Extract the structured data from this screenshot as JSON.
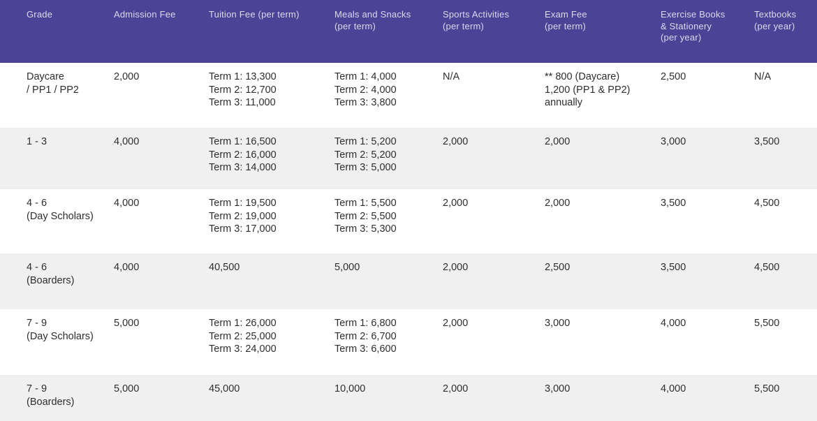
{
  "theme": {
    "header_bg": "#4b4395",
    "header_text": "#ddd9ee",
    "body_text": "#2e2e2e",
    "row_alt_bg": "#f0f0f0",
    "row_bg": "#ffffff"
  },
  "table": {
    "headers": [
      {
        "lines": [
          "Grade",
          "",
          ""
        ]
      },
      {
        "lines": [
          "Admission Fee",
          "",
          ""
        ]
      },
      {
        "lines": [
          "Tuition Fee (per term)",
          "",
          ""
        ]
      },
      {
        "lines": [
          "Meals and Snacks",
          "(per term)",
          ""
        ]
      },
      {
        "lines": [
          "Sports Activities",
          "(per term)",
          ""
        ]
      },
      {
        "lines": [
          "Exam Fee",
          "(per term)",
          ""
        ]
      },
      {
        "lines": [
          "Exercise Books",
          "& Stationery",
          "(per year)"
        ]
      },
      {
        "lines": [
          "Textbooks",
          "(per year)",
          ""
        ]
      }
    ],
    "rows": [
      {
        "cells": [
          {
            "lines": [
              "Daycare",
              "/ PP1 / PP2",
              ""
            ]
          },
          {
            "lines": [
              "2,000",
              "",
              ""
            ]
          },
          {
            "lines": [
              "Term 1: 13,300",
              "Term 2: 12,700",
              "Term 3: 11,000"
            ]
          },
          {
            "lines": [
              "Term 1: 4,000",
              "Term 2: 4,000",
              "Term 3: 3,800"
            ]
          },
          {
            "lines": [
              "N/A",
              "",
              ""
            ]
          },
          {
            "lines": [
              "** 800 (Daycare)",
              "1,200 (PP1 & PP2)",
              "annually"
            ]
          },
          {
            "lines": [
              "2,500",
              "",
              ""
            ]
          },
          {
            "lines": [
              "N/A",
              "",
              ""
            ]
          }
        ]
      },
      {
        "cells": [
          {
            "lines": [
              "1 - 3",
              "",
              ""
            ]
          },
          {
            "lines": [
              "4,000",
              "",
              ""
            ]
          },
          {
            "lines": [
              "Term 1: 16,500",
              "Term 2: 16,000",
              "Term 3: 14,000"
            ]
          },
          {
            "lines": [
              "Term 1: 5,200",
              "Term 2: 5,200",
              "Term 3: 5,000"
            ]
          },
          {
            "lines": [
              "2,000",
              "",
              ""
            ]
          },
          {
            "lines": [
              "2,000",
              "",
              ""
            ]
          },
          {
            "lines": [
              "3,000",
              "",
              ""
            ]
          },
          {
            "lines": [
              "3,500",
              "",
              ""
            ]
          }
        ]
      },
      {
        "cells": [
          {
            "lines": [
              "4 - 6",
              "(Day Scholars)",
              ""
            ]
          },
          {
            "lines": [
              "4,000",
              "",
              ""
            ]
          },
          {
            "lines": [
              "Term 1: 19,500",
              "Term 2: 19,000",
              "Term 3: 17,000"
            ]
          },
          {
            "lines": [
              "Term 1: 5,500",
              "Term 2: 5,500",
              "Term 3: 5,300"
            ]
          },
          {
            "lines": [
              "2,000",
              "",
              ""
            ]
          },
          {
            "lines": [
              "2,000",
              "",
              ""
            ]
          },
          {
            "lines": [
              "3,500",
              "",
              ""
            ]
          },
          {
            "lines": [
              "4,500",
              "",
              ""
            ]
          }
        ]
      },
      {
        "cells": [
          {
            "lines": [
              "4 - 6",
              "(Boarders)",
              ""
            ]
          },
          {
            "lines": [
              "4,000",
              "",
              ""
            ]
          },
          {
            "lines": [
              "40,500",
              "",
              ""
            ]
          },
          {
            "lines": [
              "5,000",
              "",
              ""
            ]
          },
          {
            "lines": [
              "2,000",
              "",
              ""
            ]
          },
          {
            "lines": [
              "2,500",
              "",
              ""
            ]
          },
          {
            "lines": [
              "3,500",
              "",
              ""
            ]
          },
          {
            "lines": [
              "4,500",
              "",
              ""
            ]
          }
        ]
      },
      {
        "cells": [
          {
            "lines": [
              "7 - 9",
              "(Day Scholars)",
              ""
            ]
          },
          {
            "lines": [
              "5,000",
              "",
              ""
            ]
          },
          {
            "lines": [
              "Term 1: 26,000",
              "Term 2: 25,000",
              "Term 3: 24,000"
            ]
          },
          {
            "lines": [
              "Term 1: 6,800",
              "Term 2: 6,700",
              "Term 3: 6,600"
            ]
          },
          {
            "lines": [
              "2,000",
              "",
              ""
            ]
          },
          {
            "lines": [
              "3,000",
              "",
              ""
            ]
          },
          {
            "lines": [
              "4,000",
              "",
              ""
            ]
          },
          {
            "lines": [
              "5,500",
              "",
              ""
            ]
          }
        ]
      },
      {
        "cells": [
          {
            "lines": [
              "7 - 9",
              "(Boarders)",
              ""
            ]
          },
          {
            "lines": [
              "5,000",
              "",
              ""
            ]
          },
          {
            "lines": [
              "45,000",
              "",
              ""
            ]
          },
          {
            "lines": [
              "10,000",
              "",
              ""
            ]
          },
          {
            "lines": [
              "2,000",
              "",
              ""
            ]
          },
          {
            "lines": [
              "3,000",
              "",
              ""
            ]
          },
          {
            "lines": [
              "4,000",
              "",
              ""
            ]
          },
          {
            "lines": [
              "5,500",
              "",
              ""
            ]
          }
        ]
      }
    ]
  }
}
